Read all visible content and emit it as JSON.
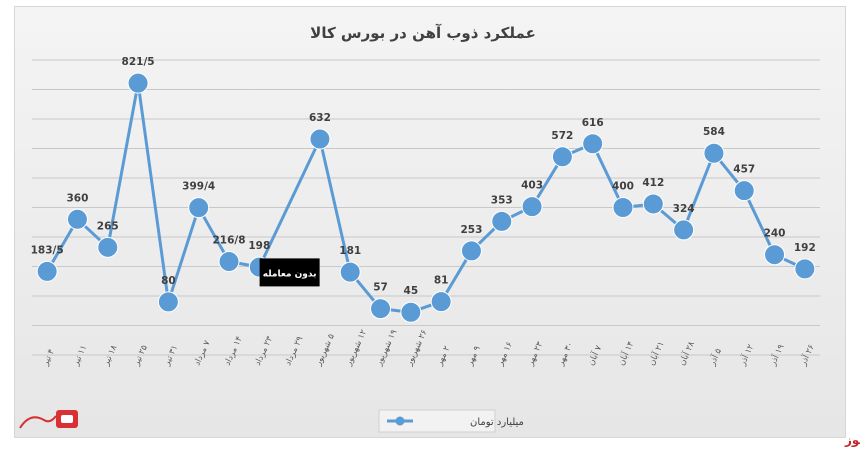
{
  "brand": "بورس نیوز",
  "chart_data": {
    "type": "line",
    "title": "عملکرد ذوب آهن در بورس کالا",
    "categories": [
      "۴ تیر",
      "۱۱ تیر",
      "۱۸ تیر",
      "۲۵ تیر",
      "۳۱ تیر",
      "۷ مرداد",
      "۱۴ مرداد",
      "۲۳ مرداد",
      "۲۹ مرداد",
      "۵ شهریور",
      "۱۲ شهریور",
      "۱۹ شهریور",
      "۲۶ شهریور",
      "۲ مهر",
      "۹ مهر",
      "۱۶ مهر",
      "۲۳ مهر",
      "۳۰ مهر",
      "۷ آبان",
      "۱۴ آبان",
      "۲۱ آبان",
      "۲۸ آبان",
      "۵ آذر",
      "۱۲ آذر",
      "۱۹ آذر",
      "۲۶ آذر"
    ],
    "series": [
      {
        "name": "میلیارد تومان",
        "color": "#5b9bd5",
        "values": [
          183.5,
          360,
          265,
          821.5,
          80,
          399.4,
          216.8,
          198,
          null,
          632,
          181,
          57,
          45,
          81,
          253,
          353,
          403,
          572,
          616,
          400,
          412,
          324,
          584,
          457,
          240,
          192
        ],
        "labels": [
          "183/5",
          "360",
          "265",
          "821/5",
          "80",
          "399/4",
          "216/8",
          "198",
          "",
          "632",
          "181",
          "57",
          "45",
          "81",
          "253",
          "353",
          "403",
          "572",
          "616",
          "400",
          "412",
          "324",
          "584",
          "457",
          "240",
          "192"
        ]
      }
    ],
    "annotations": [
      {
        "category_index": 8,
        "text": "بدون معامله"
      }
    ],
    "ylim": [
      -100,
      900
    ],
    "y_axis_labels_visible": false,
    "grid": true,
    "legend": "bottom-center"
  }
}
